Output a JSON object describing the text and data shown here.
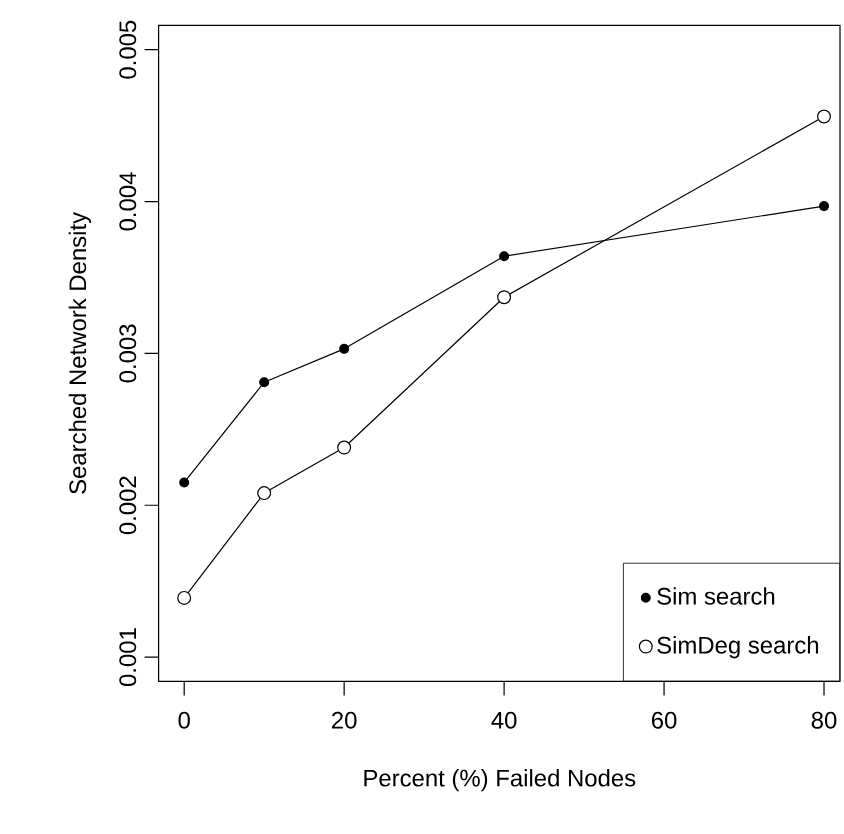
{
  "chart_data": {
    "type": "line",
    "xlabel": "Percent (%) Failed Nodes",
    "ylabel": "Searched Network Density",
    "x": [
      0,
      10,
      20,
      40,
      80
    ],
    "series": [
      {
        "name": "Sim search",
        "color": "#000000",
        "marker": "circle",
        "values": [
          0.00215,
          0.00281,
          0.00303,
          0.00364,
          0.00397
        ]
      },
      {
        "name": "SimDeg search",
        "color": "#000000",
        "marker": "circle",
        "values": [
          0.00139,
          0.00208,
          0.00238,
          0.00337,
          0.00456
        ]
      }
    ],
    "xlim": [
      -3.2,
      82
    ],
    "ylim": [
      0.00084,
      0.00516
    ],
    "xticks": [
      0,
      20,
      40,
      60,
      80
    ],
    "yticks": [
      0.001,
      0.002,
      0.003,
      0.004,
      0.005
    ],
    "legend": "bottom right",
    "grid": false,
    "line_style": "solid"
  }
}
